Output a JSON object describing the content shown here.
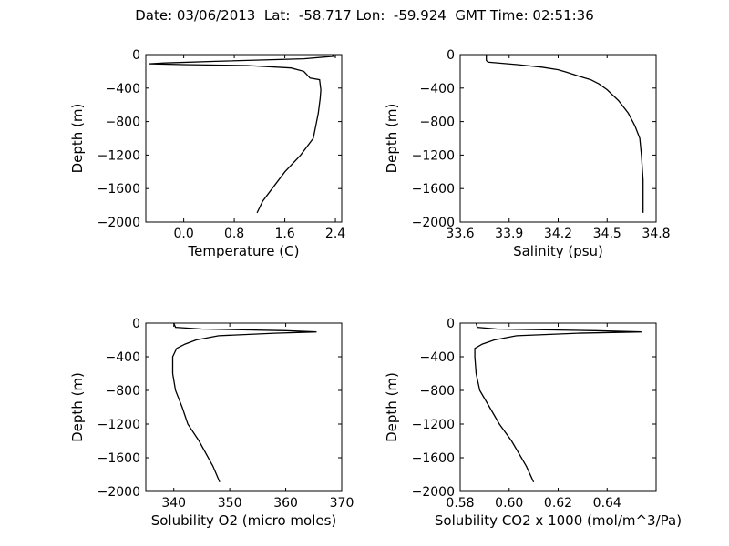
{
  "figure_title": "Date: 03/06/2013  Lat:  -58.717 Lon:  -59.924  GMT Time: 02:51:36",
  "chart_data": [
    {
      "type": "line",
      "xlabel": "Temperature (C)",
      "ylabel": "Depth (m)",
      "xlim": [
        -0.6,
        2.5
      ],
      "ylim": [
        -2000,
        0
      ],
      "xticks": [
        0.0,
        0.8,
        1.6,
        2.4
      ],
      "xtick_labels": [
        "0.0",
        "0.8",
        "1.6",
        "2.4"
      ],
      "yticks": [
        0,
        -400,
        -800,
        -1200,
        -1600,
        -2000
      ],
      "ytick_labels": [
        "0",
        "−400",
        "−800",
        "−1200",
        "−1600",
        "−2000"
      ],
      "grid": false,
      "x": [
        2.35,
        2.38,
        1.9,
        0.5,
        -0.3,
        -0.55,
        0.0,
        1.0,
        1.7,
        1.9,
        2.0,
        2.15,
        2.17,
        2.16,
        2.13,
        2.05,
        1.85,
        1.6,
        1.4,
        1.25,
        1.16
      ],
      "y": [
        0,
        -20,
        -50,
        -80,
        -100,
        -110,
        -120,
        -130,
        -160,
        -200,
        -280,
        -300,
        -420,
        -520,
        -700,
        -1000,
        -1200,
        -1400,
        -1600,
        -1750,
        -1890
      ]
    },
    {
      "type": "line",
      "xlabel": "Salinity (psu)",
      "ylabel": "Depth (m)",
      "xlim": [
        33.6,
        34.8
      ],
      "ylim": [
        -2000,
        0
      ],
      "xticks": [
        33.6,
        33.9,
        34.2,
        34.5,
        34.8
      ],
      "xtick_labels": [
        "33.6",
        "33.9",
        "34.2",
        "34.5",
        "34.8"
      ],
      "yticks": [
        0,
        -400,
        -800,
        -1200,
        -1600,
        -2000
      ],
      "ytick_labels": [
        "0",
        "−400",
        "−800",
        "−1200",
        "−1600",
        "−2000"
      ],
      "grid": false,
      "x": [
        33.76,
        33.76,
        33.77,
        33.95,
        34.1,
        34.2,
        34.25,
        34.33,
        34.4,
        34.45,
        34.5,
        34.57,
        34.63,
        34.67,
        34.7,
        34.71,
        34.72,
        34.72
      ],
      "y": [
        0,
        -70,
        -90,
        -120,
        -150,
        -180,
        -210,
        -260,
        -300,
        -350,
        -420,
        -550,
        -700,
        -850,
        -1000,
        -1200,
        -1500,
        -1890
      ]
    },
    {
      "type": "line",
      "xlabel": "Solubility O2 (micro moles)",
      "ylabel": "Depth (m)",
      "xlim": [
        335,
        370
      ],
      "ylim": [
        -2000,
        0
      ],
      "xticks": [
        340,
        350,
        360,
        370
      ],
      "xtick_labels": [
        "340",
        "350",
        "360",
        "370"
      ],
      "yticks": [
        0,
        -400,
        -800,
        -1200,
        -1600,
        -2000
      ],
      "ytick_labels": [
        "0",
        "−400",
        "−800",
        "−1200",
        "−1600",
        "−2000"
      ],
      "grid": false,
      "x": [
        340.0,
        340.3,
        345.0,
        360.0,
        365.5,
        358.0,
        348.0,
        344.0,
        342.0,
        340.5,
        339.8,
        339.8,
        340.3,
        341.5,
        342.5,
        344.5,
        347.0,
        348.2
      ],
      "y": [
        0,
        -50,
        -70,
        -90,
        -105,
        -120,
        -150,
        -200,
        -250,
        -300,
        -400,
        -600,
        -800,
        -1000,
        -1200,
        -1400,
        -1700,
        -1890
      ]
    },
    {
      "type": "line",
      "xlabel": "Solubility CO2 x 1000 (mol/m^3/Pa)",
      "ylabel": "Depth (m)",
      "xlim": [
        0.58,
        0.66
      ],
      "ylim": [
        -2000,
        0
      ],
      "xticks": [
        0.58,
        0.6,
        0.62,
        0.64
      ],
      "xtick_labels": [
        "0.58",
        "0.60",
        "0.62",
        "0.64"
      ],
      "yticks": [
        0,
        -400,
        -800,
        -1200,
        -1600,
        -2000
      ],
      "ytick_labels": [
        "0",
        "−400",
        "−800",
        "−1200",
        "−1600",
        "−2000"
      ],
      "grid": false,
      "x": [
        0.5865,
        0.587,
        0.595,
        0.635,
        0.654,
        0.628,
        0.603,
        0.594,
        0.589,
        0.586,
        0.586,
        0.5865,
        0.588,
        0.592,
        0.596,
        0.601,
        0.607,
        0.61
      ],
      "y": [
        0,
        -50,
        -70,
        -90,
        -105,
        -120,
        -150,
        -200,
        -250,
        -300,
        -400,
        -600,
        -800,
        -1000,
        -1200,
        -1400,
        -1700,
        -1890
      ]
    }
  ]
}
